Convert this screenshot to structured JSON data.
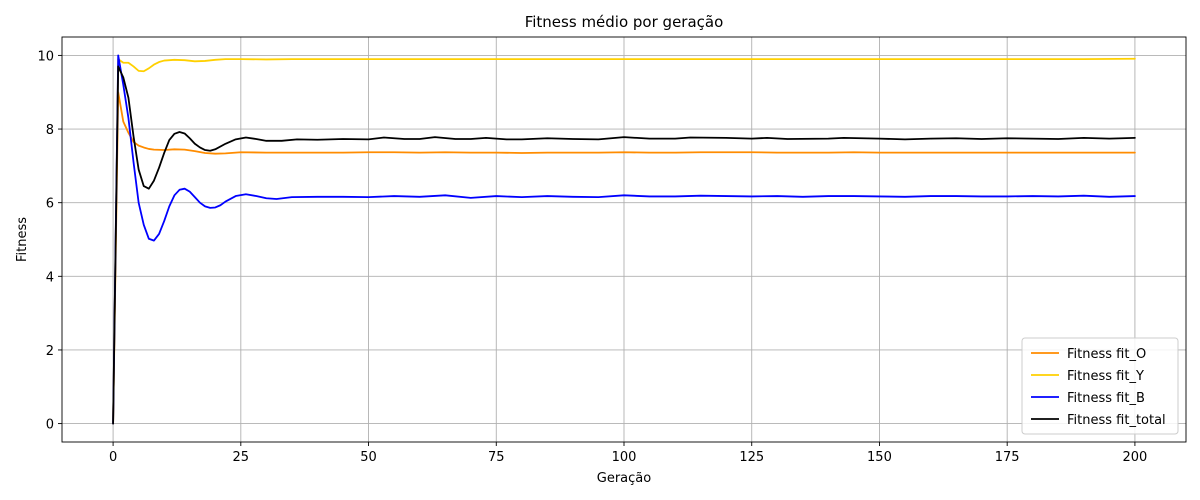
{
  "chart_data": {
    "type": "line",
    "title": "Fitness médio por geração",
    "xlabel": "Geração",
    "ylabel": "Fitness",
    "xlim": [
      -10,
      210
    ],
    "ylim": [
      -0.5,
      10.5
    ],
    "xticks": [
      0,
      25,
      50,
      75,
      100,
      125,
      150,
      175,
      200
    ],
    "yticks": [
      0,
      2,
      4,
      6,
      8,
      10
    ],
    "grid": true,
    "legend_position": "bottom-right",
    "series": [
      {
        "name": "Fitness fit_O",
        "color": "#ff8c00",
        "points": [
          [
            0,
            0
          ],
          [
            1,
            9.0
          ],
          [
            2,
            8.2
          ],
          [
            3,
            7.9
          ],
          [
            4,
            7.65
          ],
          [
            5,
            7.55
          ],
          [
            6,
            7.5
          ],
          [
            7,
            7.46
          ],
          [
            8,
            7.44
          ],
          [
            10,
            7.43
          ],
          [
            12,
            7.45
          ],
          [
            14,
            7.44
          ],
          [
            16,
            7.4
          ],
          [
            18,
            7.35
          ],
          [
            20,
            7.33
          ],
          [
            22,
            7.34
          ],
          [
            25,
            7.37
          ],
          [
            30,
            7.36
          ],
          [
            35,
            7.36
          ],
          [
            40,
            7.36
          ],
          [
            45,
            7.36
          ],
          [
            50,
            7.37
          ],
          [
            55,
            7.37
          ],
          [
            60,
            7.36
          ],
          [
            65,
            7.37
          ],
          [
            70,
            7.36
          ],
          [
            75,
            7.36
          ],
          [
            80,
            7.35
          ],
          [
            85,
            7.36
          ],
          [
            90,
            7.36
          ],
          [
            95,
            7.36
          ],
          [
            100,
            7.37
          ],
          [
            105,
            7.36
          ],
          [
            110,
            7.36
          ],
          [
            115,
            7.37
          ],
          [
            120,
            7.37
          ],
          [
            125,
            7.37
          ],
          [
            130,
            7.36
          ],
          [
            135,
            7.36
          ],
          [
            140,
            7.36
          ],
          [
            145,
            7.37
          ],
          [
            150,
            7.36
          ],
          [
            155,
            7.36
          ],
          [
            160,
            7.36
          ],
          [
            165,
            7.36
          ],
          [
            170,
            7.36
          ],
          [
            175,
            7.36
          ],
          [
            180,
            7.36
          ],
          [
            185,
            7.36
          ],
          [
            190,
            7.36
          ],
          [
            195,
            7.36
          ],
          [
            200,
            7.36
          ]
        ]
      },
      {
        "name": "Fitness fit_Y",
        "color": "#ffd000",
        "points": [
          [
            0,
            0
          ],
          [
            1,
            9.9
          ],
          [
            2,
            9.8
          ],
          [
            3,
            9.8
          ],
          [
            4,
            9.7
          ],
          [
            5,
            9.58
          ],
          [
            6,
            9.57
          ],
          [
            7,
            9.65
          ],
          [
            8,
            9.75
          ],
          [
            9,
            9.82
          ],
          [
            10,
            9.86
          ],
          [
            12,
            9.88
          ],
          [
            14,
            9.87
          ],
          [
            16,
            9.84
          ],
          [
            18,
            9.85
          ],
          [
            20,
            9.88
          ],
          [
            22,
            9.9
          ],
          [
            25,
            9.9
          ],
          [
            30,
            9.89
          ],
          [
            35,
            9.9
          ],
          [
            40,
            9.9
          ],
          [
            50,
            9.9
          ],
          [
            60,
            9.9
          ],
          [
            70,
            9.9
          ],
          [
            80,
            9.9
          ],
          [
            90,
            9.9
          ],
          [
            100,
            9.9
          ],
          [
            110,
            9.9
          ],
          [
            120,
            9.9
          ],
          [
            130,
            9.9
          ],
          [
            140,
            9.9
          ],
          [
            150,
            9.9
          ],
          [
            160,
            9.9
          ],
          [
            170,
            9.9
          ],
          [
            180,
            9.9
          ],
          [
            190,
            9.9
          ],
          [
            200,
            9.91
          ]
        ]
      },
      {
        "name": "Fitness fit_B",
        "color": "#0000ff",
        "points": [
          [
            0,
            0
          ],
          [
            1,
            10.0
          ],
          [
            2,
            9.2
          ],
          [
            3,
            8.3
          ],
          [
            4,
            7.1
          ],
          [
            5,
            6.0
          ],
          [
            6,
            5.4
          ],
          [
            7,
            5.02
          ],
          [
            8,
            4.97
          ],
          [
            9,
            5.15
          ],
          [
            10,
            5.5
          ],
          [
            11,
            5.9
          ],
          [
            12,
            6.2
          ],
          [
            13,
            6.35
          ],
          [
            14,
            6.38
          ],
          [
            15,
            6.3
          ],
          [
            16,
            6.15
          ],
          [
            17,
            6.0
          ],
          [
            18,
            5.9
          ],
          [
            19,
            5.86
          ],
          [
            20,
            5.87
          ],
          [
            21,
            5.93
          ],
          [
            22,
            6.03
          ],
          [
            24,
            6.18
          ],
          [
            26,
            6.23
          ],
          [
            28,
            6.18
          ],
          [
            30,
            6.12
          ],
          [
            32,
            6.1
          ],
          [
            35,
            6.15
          ],
          [
            40,
            6.16
          ],
          [
            45,
            6.16
          ],
          [
            50,
            6.15
          ],
          [
            55,
            6.18
          ],
          [
            60,
            6.16
          ],
          [
            65,
            6.2
          ],
          [
            70,
            6.13
          ],
          [
            75,
            6.18
          ],
          [
            80,
            6.15
          ],
          [
            85,
            6.18
          ],
          [
            90,
            6.16
          ],
          [
            95,
            6.15
          ],
          [
            100,
            6.2
          ],
          [
            105,
            6.17
          ],
          [
            110,
            6.17
          ],
          [
            115,
            6.19
          ],
          [
            120,
            6.18
          ],
          [
            125,
            6.17
          ],
          [
            130,
            6.18
          ],
          [
            135,
            6.16
          ],
          [
            140,
            6.18
          ],
          [
            145,
            6.18
          ],
          [
            150,
            6.17
          ],
          [
            155,
            6.16
          ],
          [
            160,
            6.18
          ],
          [
            165,
            6.18
          ],
          [
            170,
            6.17
          ],
          [
            175,
            6.17
          ],
          [
            180,
            6.18
          ],
          [
            185,
            6.17
          ],
          [
            190,
            6.19
          ],
          [
            195,
            6.16
          ],
          [
            200,
            6.18
          ]
        ]
      },
      {
        "name": "Fitness fit_total",
        "color": "#000000",
        "points": [
          [
            0,
            0
          ],
          [
            1,
            9.7
          ],
          [
            2,
            9.4
          ],
          [
            3,
            8.85
          ],
          [
            4,
            7.8
          ],
          [
            5,
            6.9
          ],
          [
            6,
            6.45
          ],
          [
            7,
            6.38
          ],
          [
            8,
            6.6
          ],
          [
            9,
            6.95
          ],
          [
            10,
            7.35
          ],
          [
            11,
            7.7
          ],
          [
            12,
            7.87
          ],
          [
            13,
            7.92
          ],
          [
            14,
            7.88
          ],
          [
            15,
            7.75
          ],
          [
            16,
            7.6
          ],
          [
            17,
            7.5
          ],
          [
            18,
            7.43
          ],
          [
            19,
            7.41
          ],
          [
            20,
            7.45
          ],
          [
            22,
            7.6
          ],
          [
            24,
            7.72
          ],
          [
            26,
            7.77
          ],
          [
            28,
            7.73
          ],
          [
            30,
            7.68
          ],
          [
            33,
            7.68
          ],
          [
            36,
            7.72
          ],
          [
            40,
            7.71
          ],
          [
            45,
            7.73
          ],
          [
            50,
            7.72
          ],
          [
            53,
            7.77
          ],
          [
            57,
            7.73
          ],
          [
            60,
            7.73
          ],
          [
            63,
            7.78
          ],
          [
            67,
            7.73
          ],
          [
            70,
            7.73
          ],
          [
            73,
            7.76
          ],
          [
            77,
            7.72
          ],
          [
            80,
            7.72
          ],
          [
            85,
            7.75
          ],
          [
            90,
            7.73
          ],
          [
            95,
            7.72
          ],
          [
            100,
            7.78
          ],
          [
            105,
            7.74
          ],
          [
            110,
            7.74
          ],
          [
            113,
            7.77
          ],
          [
            120,
            7.76
          ],
          [
            125,
            7.74
          ],
          [
            128,
            7.76
          ],
          [
            132,
            7.73
          ],
          [
            140,
            7.74
          ],
          [
            143,
            7.76
          ],
          [
            150,
            7.74
          ],
          [
            155,
            7.72
          ],
          [
            160,
            7.74
          ],
          [
            165,
            7.75
          ],
          [
            170,
            7.73
          ],
          [
            175,
            7.75
          ],
          [
            180,
            7.74
          ],
          [
            185,
            7.73
          ],
          [
            190,
            7.76
          ],
          [
            195,
            7.74
          ],
          [
            200,
            7.76
          ]
        ]
      }
    ]
  }
}
